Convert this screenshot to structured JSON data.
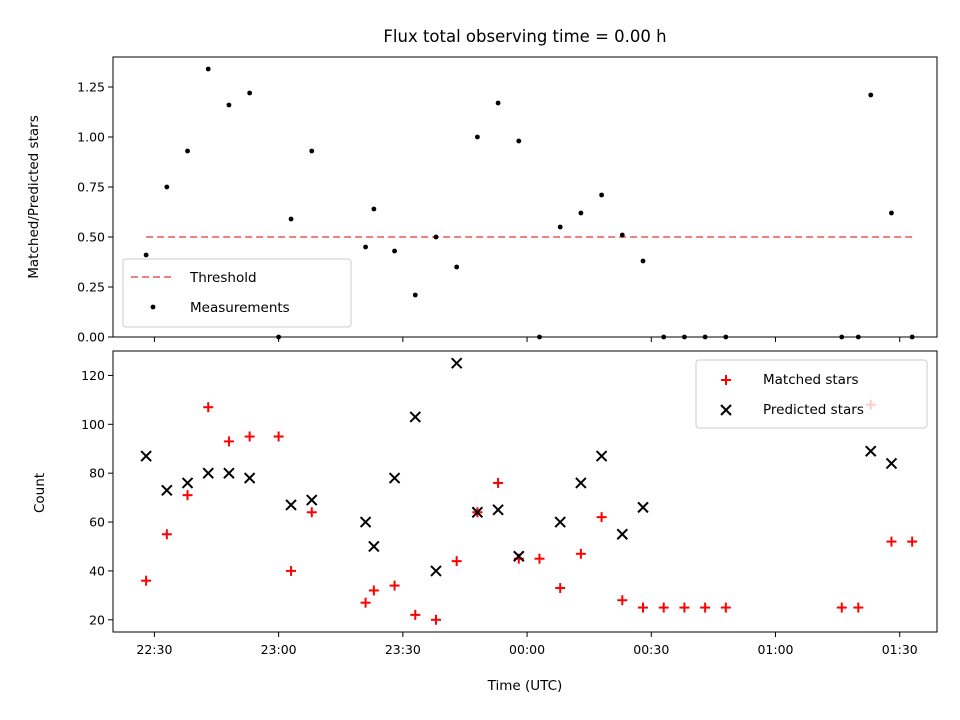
{
  "chart_data": [
    {
      "type": "scatter",
      "title": "Flux total observing time = 0.00 h",
      "xlabel": "",
      "ylabel": "Matched/Predicted stars",
      "ylim": [
        0,
        1.4
      ],
      "yticks": [
        "0.00",
        "0.25",
        "0.50",
        "0.75",
        "1.00",
        "1.25"
      ],
      "legend_position": "lower-left",
      "threshold": {
        "name": "Threshold",
        "value": 0.5,
        "x_start": "22:28",
        "x_end": "01:33",
        "color": "#f08080"
      },
      "series": [
        {
          "name": "Measurements",
          "color": "#000000",
          "points": [
            [
              "22:28",
              0.41
            ],
            [
              "22:33",
              0.75
            ],
            [
              "22:38",
              0.93
            ],
            [
              "22:43",
              1.34
            ],
            [
              "22:48",
              1.16
            ],
            [
              "22:53",
              1.22
            ],
            [
              "23:00",
              0.0
            ],
            [
              "23:03",
              0.59
            ],
            [
              "23:08",
              0.93
            ],
            [
              "23:21",
              0.45
            ],
            [
              "23:23",
              0.64
            ],
            [
              "23:28",
              0.43
            ],
            [
              "23:33",
              0.21
            ],
            [
              "23:38",
              0.5
            ],
            [
              "23:43",
              0.35
            ],
            [
              "23:48",
              1.0
            ],
            [
              "23:53",
              1.17
            ],
            [
              "23:58",
              0.98
            ],
            [
              "00:03",
              0.0
            ],
            [
              "00:08",
              0.55
            ],
            [
              "00:13",
              0.62
            ],
            [
              "00:18",
              0.71
            ],
            [
              "00:23",
              0.51
            ],
            [
              "00:28",
              0.38
            ],
            [
              "00:33",
              0.0
            ],
            [
              "00:38",
              0.0
            ],
            [
              "00:43",
              0.0
            ],
            [
              "00:48",
              0.0
            ],
            [
              "01:16",
              0.0
            ],
            [
              "01:20",
              0.0
            ],
            [
              "01:23",
              1.21
            ],
            [
              "01:28",
              0.62
            ],
            [
              "01:33",
              0.0
            ]
          ]
        }
      ]
    },
    {
      "type": "scatter",
      "title": "",
      "xlabel": "Time (UTC)",
      "ylabel": "Count",
      "ylim": [
        15,
        130
      ],
      "yticks": [
        "20",
        "40",
        "60",
        "80",
        "100",
        "120"
      ],
      "xticks": [
        "22:30",
        "23:00",
        "23:30",
        "00:00",
        "00:30",
        "01:00",
        "01:30"
      ],
      "legend_position": "upper-right",
      "series": [
        {
          "name": "Matched stars",
          "color": "#ff0000",
          "marker": "plus",
          "points": [
            [
              "22:28",
              36
            ],
            [
              "22:33",
              55
            ],
            [
              "22:38",
              71
            ],
            [
              "22:43",
              107
            ],
            [
              "22:48",
              93
            ],
            [
              "22:53",
              95
            ],
            [
              "23:00",
              95
            ],
            [
              "23:03",
              40
            ],
            [
              "23:08",
              64
            ],
            [
              "23:21",
              27
            ],
            [
              "23:23",
              32
            ],
            [
              "23:28",
              34
            ],
            [
              "23:33",
              22
            ],
            [
              "23:38",
              20
            ],
            [
              "23:43",
              44
            ],
            [
              "23:48",
              64
            ],
            [
              "23:53",
              76
            ],
            [
              "23:58",
              45
            ],
            [
              "00:03",
              45
            ],
            [
              "00:08",
              33
            ],
            [
              "00:13",
              47
            ],
            [
              "00:18",
              62
            ],
            [
              "00:23",
              28
            ],
            [
              "00:28",
              25
            ],
            [
              "00:33",
              25
            ],
            [
              "00:38",
              25
            ],
            [
              "00:43",
              25
            ],
            [
              "00:48",
              25
            ],
            [
              "01:16",
              25
            ],
            [
              "01:20",
              25
            ],
            [
              "01:23",
              108
            ],
            [
              "01:28",
              52
            ],
            [
              "01:33",
              52
            ]
          ]
        },
        {
          "name": "Predicted stars",
          "color": "#000000",
          "marker": "x",
          "points": [
            [
              "22:28",
              87
            ],
            [
              "22:33",
              73
            ],
            [
              "22:38",
              76
            ],
            [
              "22:43",
              80
            ],
            [
              "22:48",
              80
            ],
            [
              "22:53",
              78
            ],
            [
              "23:03",
              67
            ],
            [
              "23:08",
              69
            ],
            [
              "23:21",
              60
            ],
            [
              "23:23",
              50
            ],
            [
              "23:28",
              78
            ],
            [
              "23:33",
              103
            ],
            [
              "23:38",
              40
            ],
            [
              "23:43",
              125
            ],
            [
              "23:48",
              64
            ],
            [
              "23:53",
              65
            ],
            [
              "23:58",
              46
            ],
            [
              "00:08",
              60
            ],
            [
              "00:13",
              76
            ],
            [
              "00:18",
              87
            ],
            [
              "00:23",
              55
            ],
            [
              "00:28",
              66
            ],
            [
              "01:23",
              89
            ],
            [
              "01:28",
              84
            ]
          ]
        }
      ]
    }
  ]
}
